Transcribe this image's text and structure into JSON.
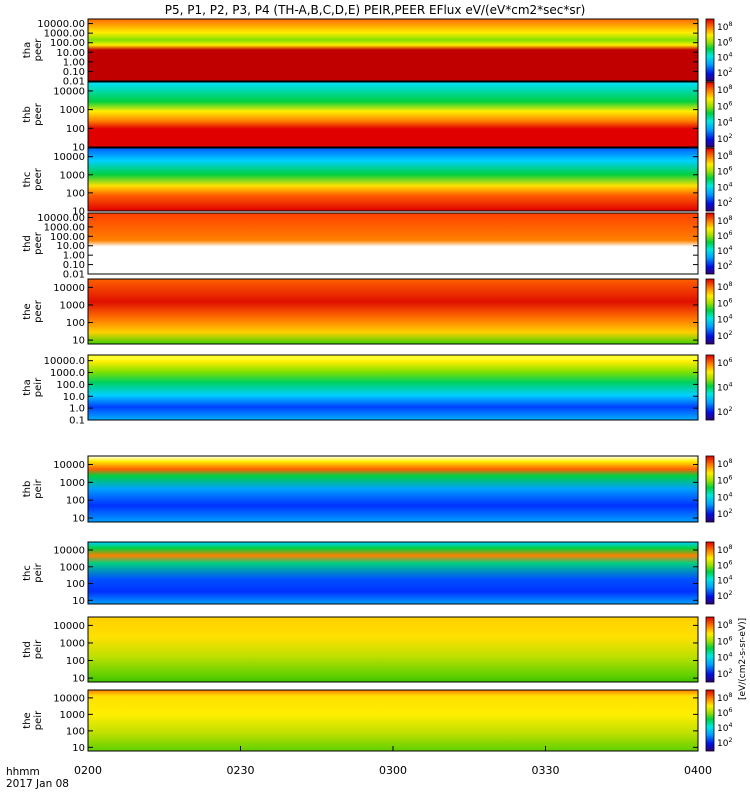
{
  "title": "P5, P1, P2, P3, P4 (TH-A,B,C,D,E) PEIR,PEER EFlux eV/(eV*cm2*sec*sr)",
  "time_axis": {
    "row_label": "hhmm",
    "date_label": "2017 Jan 08",
    "tick_labels": [
      "0200",
      "0230",
      "0300",
      "0330",
      "0400"
    ]
  },
  "colorbar_label": "[eV/(cm2-s-sr-eV)]",
  "chart_data": [
    {
      "type": "heatmap",
      "probe": "tha",
      "species": "peer",
      "ylabel_probe": "tha",
      "ylabel_species": "peer",
      "y_ticks": [
        "10000.00",
        "1000.00",
        "100.00",
        "10.00",
        "1.00",
        "0.10",
        "0.01"
      ],
      "y_log_range": [
        0.01,
        30000
      ],
      "colorbar_ticks": [
        "10^8",
        "10^6",
        "10^4",
        "10^2"
      ],
      "xlim": [
        "0200",
        "0400"
      ]
    },
    {
      "type": "heatmap",
      "probe": "thb",
      "species": "peer",
      "ylabel_probe": "thb",
      "ylabel_species": "peer",
      "y_ticks": [
        "10000",
        "1000",
        "100",
        "10"
      ],
      "y_log_range": [
        10,
        30000
      ],
      "colorbar_ticks": [
        "10^8",
        "10^6",
        "10^4",
        "10^2"
      ],
      "xlim": [
        "0200",
        "0400"
      ]
    },
    {
      "type": "heatmap",
      "probe": "thc",
      "species": "peer",
      "ylabel_probe": "thc",
      "ylabel_species": "peer",
      "y_ticks": [
        "10000",
        "1000",
        "100",
        "10"
      ],
      "y_log_range": [
        10,
        30000
      ],
      "colorbar_ticks": [
        "10^8",
        "10^6",
        "10^4",
        "10^2"
      ],
      "xlim": [
        "0200",
        "0400"
      ]
    },
    {
      "type": "heatmap",
      "probe": "thd",
      "species": "peer",
      "ylabel_probe": "thd",
      "ylabel_species": "peer",
      "y_ticks": [
        "10000.00",
        "1000.00",
        "100.00",
        "10.00",
        "1.00",
        "0.10",
        "0.01"
      ],
      "y_log_range": [
        0.01,
        30000
      ],
      "colorbar_ticks": [
        "10^8",
        "10^6",
        "10^4",
        "10^2"
      ],
      "xlim": [
        "0200",
        "0400"
      ]
    },
    {
      "type": "heatmap",
      "probe": "the",
      "species": "peer",
      "ylabel_probe": "the",
      "ylabel_species": "peer",
      "y_ticks": [
        "10000",
        "1000",
        "100",
        "10"
      ],
      "y_log_range": [
        6,
        30000
      ],
      "colorbar_ticks": [
        "10^8",
        "10^6",
        "10^4",
        "10^2"
      ],
      "xlim": [
        "0200",
        "0400"
      ]
    },
    {
      "type": "heatmap",
      "probe": "tha",
      "species": "peir",
      "ylabel_probe": "tha",
      "ylabel_species": "peir",
      "y_ticks": [
        "10000.0",
        "1000.0",
        "100.0",
        "10.0",
        "1.0",
        "0.1"
      ],
      "y_log_range": [
        0.1,
        30000
      ],
      "colorbar_ticks": [
        "10^6",
        "10^4",
        "10^2"
      ],
      "xlim": [
        "0200",
        "0400"
      ]
    },
    {
      "type": "heatmap",
      "probe": "thb",
      "species": "peir",
      "ylabel_probe": "thb",
      "ylabel_species": "peir",
      "y_ticks": [
        "10000",
        "1000",
        "100",
        "10"
      ],
      "y_log_range": [
        6,
        30000
      ],
      "colorbar_ticks": [
        "10^8",
        "10^6",
        "10^4",
        "10^2"
      ],
      "xlim": [
        "0200",
        "0400"
      ]
    },
    {
      "type": "heatmap",
      "probe": "thc",
      "species": "peir",
      "ylabel_probe": "thc",
      "ylabel_species": "peir",
      "y_ticks": [
        "10000",
        "1000",
        "100",
        "10"
      ],
      "y_log_range": [
        6,
        30000
      ],
      "colorbar_ticks": [
        "10^8",
        "10^6",
        "10^4",
        "10^2"
      ],
      "xlim": [
        "0200",
        "0400"
      ]
    },
    {
      "type": "heatmap",
      "probe": "thd",
      "species": "peir",
      "ylabel_probe": "thd",
      "ylabel_species": "peir",
      "y_ticks": [
        "10000",
        "1000",
        "100",
        "10"
      ],
      "y_log_range": [
        6,
        30000
      ],
      "colorbar_ticks": [
        "10^8",
        "10^6",
        "10^4",
        "10^2"
      ],
      "xlim": [
        "0200",
        "0400"
      ]
    },
    {
      "type": "heatmap",
      "probe": "the",
      "species": "peir",
      "ylabel_probe": "the",
      "ylabel_species": "peir",
      "y_ticks": [
        "10000",
        "1000",
        "100",
        "10"
      ],
      "y_log_range": [
        6,
        30000
      ],
      "colorbar_ticks": [
        "10^8",
        "10^6",
        "10^4",
        "10^2"
      ],
      "xlim": [
        "0200",
        "0400"
      ]
    }
  ]
}
